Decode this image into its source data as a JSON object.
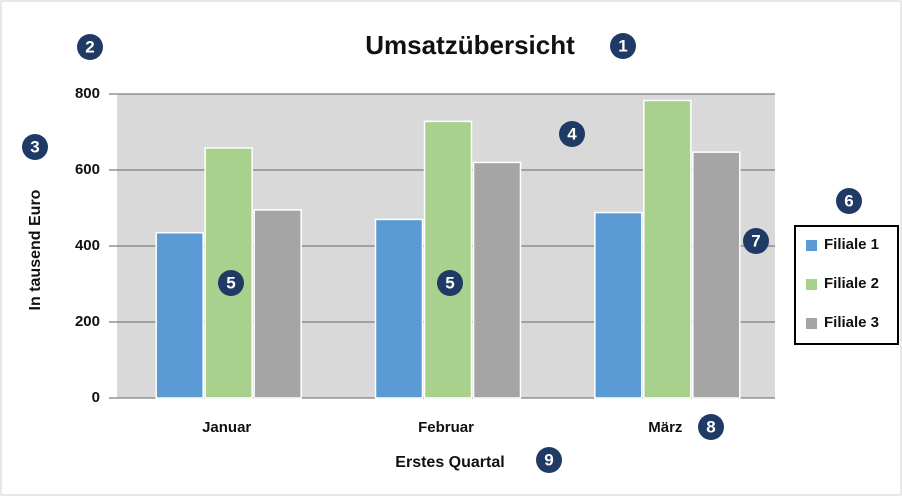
{
  "chart_data": {
    "type": "bar",
    "title": "Umsatzübersicht",
    "y_label": "In tausend Euro",
    "x_label": "Erstes Quartal",
    "categories": [
      "Januar",
      "Februar",
      "März"
    ],
    "series": [
      {
        "name": "Filiale 1",
        "color": "#5b9bd5",
        "values": [
          435,
          470,
          488
        ]
      },
      {
        "name": "Filiale 2",
        "color": "#a9d18e",
        "values": [
          658,
          728,
          783
        ]
      },
      {
        "name": "Filiale 3",
        "color": "#a5a5a5",
        "values": [
          495,
          620,
          647
        ]
      }
    ],
    "ylim": [
      0,
      800
    ],
    "yticks": [
      0,
      200,
      400,
      600,
      800
    ],
    "grid": true,
    "legend": "right",
    "annotations": [
      "1",
      "2",
      "3",
      "4",
      "5",
      "5",
      "6",
      "7",
      "8",
      "9"
    ]
  }
}
